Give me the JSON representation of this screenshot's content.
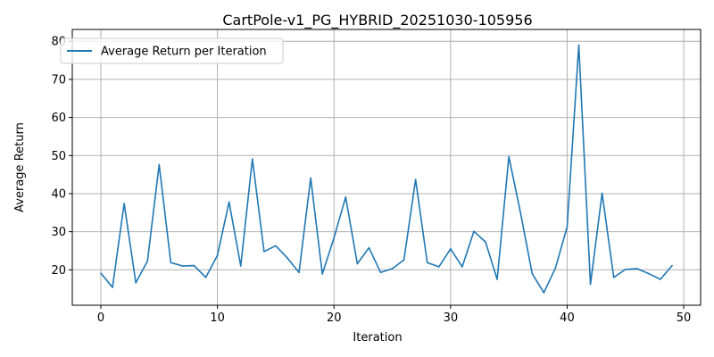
{
  "chart_data": {
    "type": "line",
    "title": "CartPole-v1_PG_HYBRID_20251030-105956",
    "xlabel": "Iteration",
    "ylabel": "Average Return",
    "xlim": [
      -2.45,
      51.45
    ],
    "ylim": [
      10.7,
      83.1
    ],
    "xticks": [
      0,
      10,
      20,
      30,
      40,
      50
    ],
    "yticks": [
      20,
      30,
      40,
      50,
      60,
      70,
      80
    ],
    "grid": true,
    "legend_position": "top-left",
    "series": [
      {
        "name": "Average Return per Iteration",
        "color": "#1f77b4",
        "x": [
          0,
          1,
          2,
          3,
          4,
          5,
          6,
          7,
          8,
          9,
          10,
          11,
          12,
          13,
          14,
          15,
          16,
          17,
          18,
          19,
          20,
          21,
          22,
          23,
          24,
          25,
          26,
          27,
          28,
          29,
          30,
          31,
          32,
          33,
          34,
          35,
          36,
          37,
          38,
          39,
          40,
          41,
          42,
          43,
          44,
          45,
          46,
          47,
          48,
          49
        ],
        "y": [
          19.1,
          15.4,
          37.4,
          16.6,
          22.3,
          47.6,
          21.9,
          21.0,
          21.1,
          18.0,
          23.8,
          37.8,
          21.0,
          49.1,
          24.8,
          26.3,
          23.1,
          19.3,
          44.1,
          18.9,
          28.4,
          39.1,
          21.6,
          25.8,
          19.3,
          20.3,
          22.6,
          43.7,
          21.9,
          20.8,
          25.5,
          20.8,
          30.1,
          27.3,
          17.5,
          49.7,
          35.0,
          19.0,
          14.0,
          20.5,
          31.3,
          79.0,
          16.2,
          40.1,
          18.0,
          20.1,
          20.3,
          19.0,
          17.5,
          21.1
        ]
      }
    ]
  }
}
